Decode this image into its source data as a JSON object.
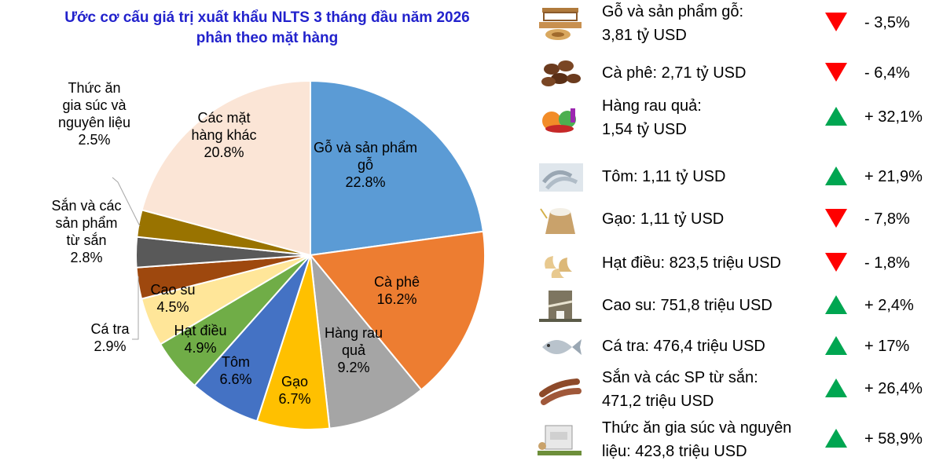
{
  "chart_data": {
    "type": "pie",
    "title_lines": [
      "Ước cơ cấu giá trị xuất khẩu NLTS 3 tháng đầu năm 2026",
      "phân theo mặt hàng"
    ],
    "slices": [
      {
        "label_lines": [
          "Gỗ và sản phẩm",
          "gỗ"
        ],
        "value": 22.8,
        "value_label": "22.8%",
        "color": "#5b9bd5"
      },
      {
        "label_lines": [
          "Cà phê"
        ],
        "value": 16.2,
        "value_label": "16.2%",
        "color": "#ed7d31"
      },
      {
        "label_lines": [
          "Hàng rau",
          "quả"
        ],
        "value": 9.2,
        "value_label": "9.2%",
        "color": "#a5a5a5"
      },
      {
        "label_lines": [
          "Gạo"
        ],
        "value": 6.7,
        "value_label": "6.7%",
        "color": "#ffc000"
      },
      {
        "label_lines": [
          "Tôm"
        ],
        "value": 6.6,
        "value_label": "6.6%",
        "color": "#4472c4"
      },
      {
        "label_lines": [
          "Hạt điều"
        ],
        "value": 4.9,
        "value_label": "4.9%",
        "color": "#70ad47"
      },
      {
        "label_lines": [
          "Cao su"
        ],
        "value": 4.5,
        "value_label": "4.5%",
        "color": "#ffe699"
      },
      {
        "label_lines": [
          "Cá tra"
        ],
        "value": 2.9,
        "value_label": "2.9%",
        "color": "#9e480e"
      },
      {
        "label_lines": [
          "Sắn và các",
          "sản phẩm",
          "từ sắn"
        ],
        "value": 2.8,
        "value_label": "2.8%",
        "color": "#595959"
      },
      {
        "label_lines": [
          "Thức ăn",
          "gia súc và",
          "nguyên liệu"
        ],
        "value": 2.5,
        "value_label": "2.5%",
        "color": "#997300"
      },
      {
        "label_lines": [
          "Các mặt",
          "hàng khác"
        ],
        "value": 20.8,
        "value_label": "20.8%",
        "color": "#fbe5d6"
      }
    ]
  },
  "panel": {
    "items": [
      {
        "icon": "wood-furniture-icon",
        "lines": [
          "Gỗ và sản phẩm gỗ:",
          "3,81 tỷ USD"
        ],
        "trend": "down",
        "change": "- 3,5%"
      },
      {
        "icon": "coffee-beans-icon",
        "lines": [
          "Cà phê: 2,71 tỷ USD"
        ],
        "trend": "down",
        "change": "- 6,4%"
      },
      {
        "icon": "vegetables-icon",
        "lines": [
          "Hàng rau quả:",
          "1,54 tỷ USD"
        ],
        "trend": "up",
        "change": "+ 32,1%"
      },
      {
        "icon": "shrimp-icon",
        "lines": [
          "Tôm: 1,11 tỷ USD"
        ],
        "trend": "up",
        "change": "+ 21,9%"
      },
      {
        "icon": "rice-sack-icon",
        "lines": [
          "Gạo: 1,11 tỷ USD"
        ],
        "trend": "down",
        "change": "- 7,8%"
      },
      {
        "icon": "cashew-icon",
        "lines": [
          "Hạt điều: 823,5 triệu USD"
        ],
        "trend": "down",
        "change": "- 1,8%"
      },
      {
        "icon": "rubber-tree-icon",
        "lines": [
          "Cao su: 751,8 triệu USD"
        ],
        "trend": "up",
        "change": "+ 2,4%"
      },
      {
        "icon": "fish-icon",
        "lines": [
          "Cá tra: 476,4 triệu USD"
        ],
        "trend": "up",
        "change": "+ 17%"
      },
      {
        "icon": "cassava-icon",
        "lines": [
          "Sắn và các SP từ sắn:",
          "471,2 triệu USD"
        ],
        "trend": "up",
        "change": "+ 26,4%"
      },
      {
        "icon": "animal-feed-icon",
        "lines": [
          "Thức ăn gia súc và nguyên",
          "liệu: 423,8 triệu USD"
        ],
        "trend": "up",
        "change": "+ 58,9%"
      }
    ],
    "colors": {
      "up": "#00a651",
      "down": "#ff0000"
    }
  }
}
